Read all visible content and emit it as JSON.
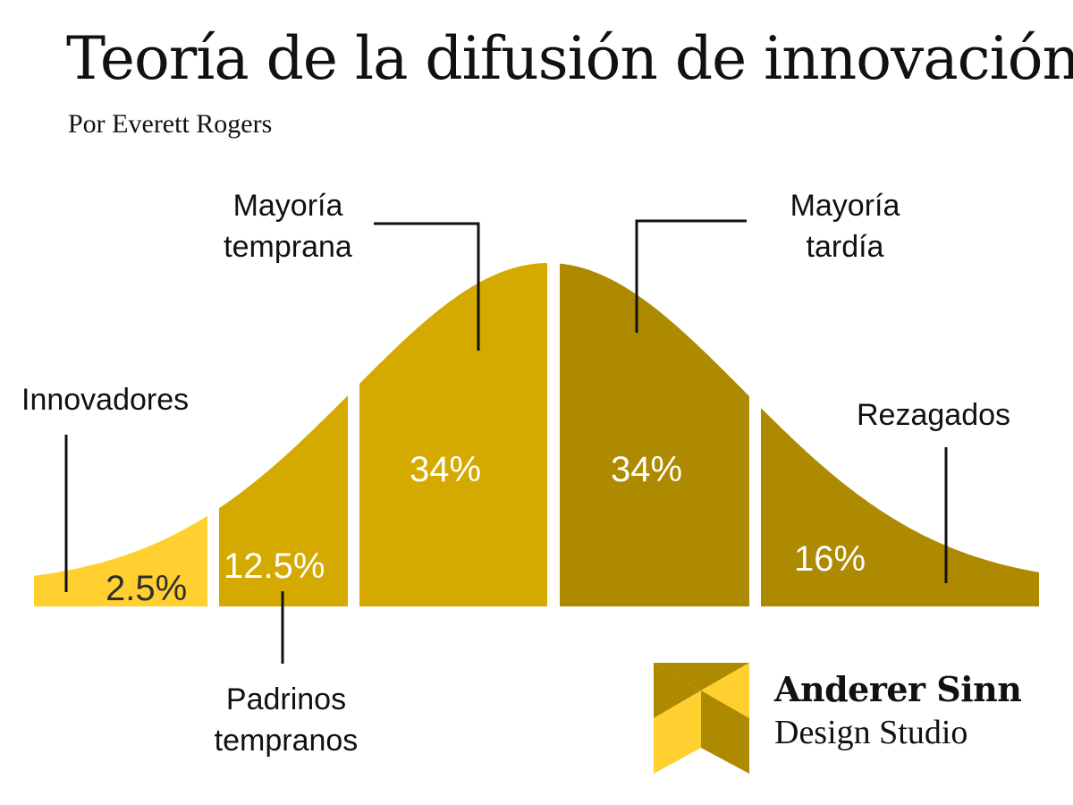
{
  "header": {
    "title": "Teoría de la difusión de innovación",
    "subtitle": "Por Everett Rogers"
  },
  "segments": [
    {
      "label_lines": [
        "Innovadores"
      ],
      "percent": "2.5%",
      "share": 2.5,
      "color": "#FFD030"
    },
    {
      "label_lines": [
        "Padrinos",
        "tempranos"
      ],
      "percent": "12.5%",
      "share": 12.5,
      "color": "#D4AA00"
    },
    {
      "label_lines": [
        "Mayoría",
        "temprana"
      ],
      "percent": "34%",
      "share": 34,
      "color": "#D4AA00"
    },
    {
      "label_lines": [
        "Mayoría",
        "tardía"
      ],
      "percent": "34%",
      "share": 34,
      "color": "#AD8A00"
    },
    {
      "label_lines": [
        "Rezagados"
      ],
      "percent": "16%",
      "share": 16,
      "color": "#AD8A00"
    }
  ],
  "brand": {
    "name": "Anderer Sinn",
    "tagline": "Design Studio",
    "logo_colors": [
      "#FFD030",
      "#AD8A00"
    ],
    "logo_icon": "bowtie-logo-icon"
  }
}
